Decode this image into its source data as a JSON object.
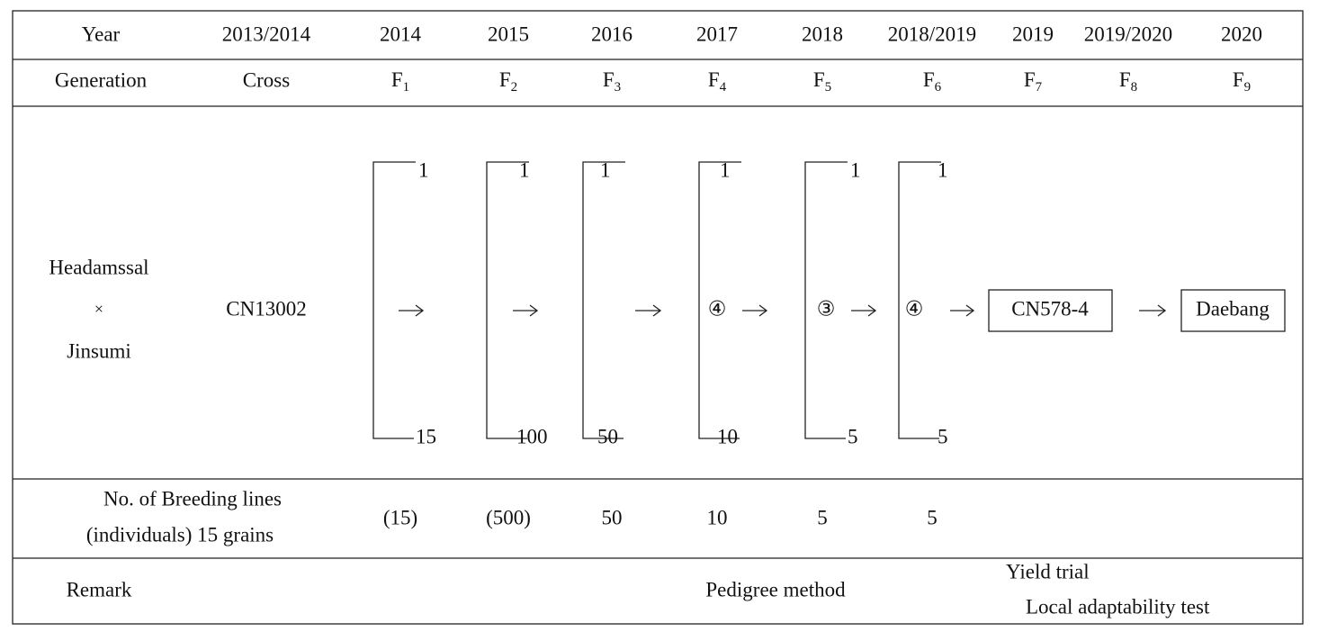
{
  "years": {
    "label": "Year",
    "values": [
      "2013/2014",
      "2014",
      "2015",
      "2016",
      "2017",
      "2018",
      "2018/2019",
      "2019",
      "2019/2020",
      "2020"
    ]
  },
  "generations": {
    "label": "Generation",
    "cross": "Cross",
    "filial": [
      {
        "letter": "F",
        "sub": "1"
      },
      {
        "letter": "F",
        "sub": "2"
      },
      {
        "letter": "F",
        "sub": "3"
      },
      {
        "letter": "F",
        "sub": "4"
      },
      {
        "letter": "F",
        "sub": "5"
      },
      {
        "letter": "F",
        "sub": "6"
      },
      {
        "letter": "F",
        "sub": "7"
      },
      {
        "letter": "F",
        "sub": "8"
      },
      {
        "letter": "F",
        "sub": "9"
      }
    ]
  },
  "diagram": {
    "parents": [
      "Headamssal",
      "×",
      "Jinsumi"
    ],
    "cross_name": "CN13002",
    "brackets": [
      {
        "top": "1",
        "bottom": "15"
      },
      {
        "top": "1",
        "bottom": "100"
      },
      {
        "top": "1",
        "bottom": "50"
      },
      {
        "top": "1",
        "bottom": "10"
      },
      {
        "top": "1",
        "bottom": "5"
      },
      {
        "top": "1",
        "bottom": "5"
      }
    ],
    "selected": [
      "④",
      "③",
      "④"
    ],
    "line": "CN578-4",
    "variety": "Daebang"
  },
  "breeding_lines": {
    "label": [
      "No. of Breeding lines",
      "(individuals) 15 grains"
    ],
    "values": [
      "(15)",
      "(500)",
      "50",
      "10",
      "5",
      "5"
    ]
  },
  "remark": {
    "label": "Remark",
    "pedigree": "Pedigree method",
    "yield": "Yield trial",
    "local": "Local adaptability test"
  }
}
